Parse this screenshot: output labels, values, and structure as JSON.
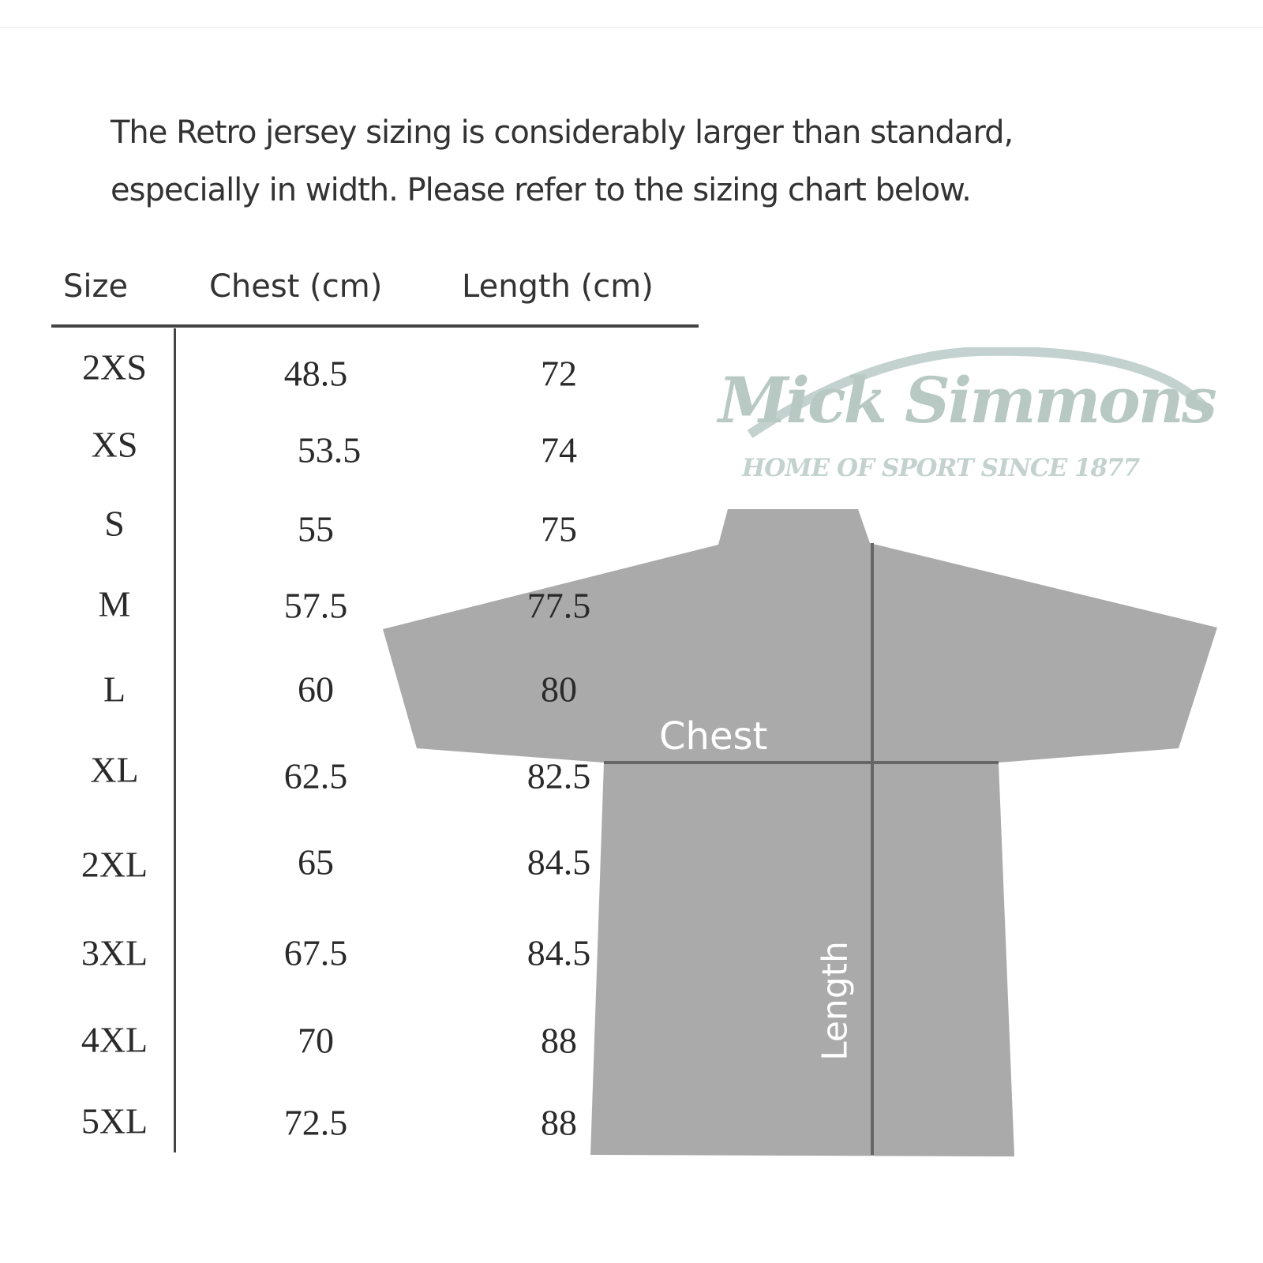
{
  "intro": {
    "line1": "The Retro jersey sizing is considerably larger than standard,",
    "line2": "especially in width. Please refer to the sizing chart below."
  },
  "table": {
    "headers": {
      "size": "Size",
      "chest": "Chest (cm)",
      "length": "Length (cm)"
    },
    "rows": [
      {
        "size": "2XS",
        "chest": "48.5",
        "length": "72"
      },
      {
        "size": "XS",
        "chest": "53.5",
        "length": "74"
      },
      {
        "size": "S",
        "chest": "55",
        "length": "75"
      },
      {
        "size": "M",
        "chest": "57.5",
        "length": "77.5"
      },
      {
        "size": "L",
        "chest": "60",
        "length": "80"
      },
      {
        "size": "XL",
        "chest": "62.5",
        "length": "82.5"
      },
      {
        "size": "2XL",
        "chest": "65",
        "length": "84.5"
      },
      {
        "size": "3XL",
        "chest": "67.5",
        "length": "84.5"
      },
      {
        "size": "4XL",
        "chest": "70",
        "length": "88"
      },
      {
        "size": "5XL",
        "chest": "72.5",
        "length": "88"
      }
    ]
  },
  "diagram": {
    "chest_label": "Chest",
    "length_label": "Length",
    "jersey_color": "#aaaaaa",
    "measure_line_color": "#666666"
  },
  "watermark": {
    "brand": "Mick Simmons",
    "tagline": "HOME OF SPORT SINCE 1877"
  }
}
